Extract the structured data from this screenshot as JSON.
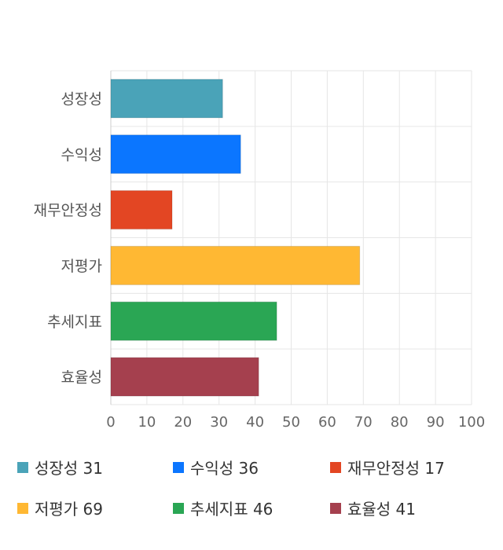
{
  "chart_data": {
    "type": "bar",
    "orientation": "horizontal",
    "categories": [
      "성장성",
      "수익성",
      "재무안정성",
      "저평가",
      "추세지표",
      "효율성"
    ],
    "values": [
      31,
      36,
      17,
      69,
      46,
      41
    ],
    "colors": [
      "#4aa3b8",
      "#0b76ff",
      "#e34623",
      "#ffb833",
      "#2aa654",
      "#a5404e"
    ],
    "xlim": [
      0,
      100
    ],
    "xticks": [
      "0",
      "10",
      "20",
      "30",
      "40",
      "50",
      "60",
      "70",
      "80",
      "90",
      "100"
    ],
    "grid": true,
    "legend_position": "bottom",
    "title": "",
    "xlabel": "",
    "ylabel": ""
  },
  "legend": {
    "items": [
      {
        "label": "성장성 31",
        "color": "#4aa3b8"
      },
      {
        "label": "수익성 36",
        "color": "#0b76ff"
      },
      {
        "label": "재무안정성 17",
        "color": "#e34623"
      },
      {
        "label": "저평가 69",
        "color": "#ffb833"
      },
      {
        "label": "추세지표 46",
        "color": "#2aa654"
      },
      {
        "label": "효율성 41",
        "color": "#a5404e"
      }
    ]
  }
}
